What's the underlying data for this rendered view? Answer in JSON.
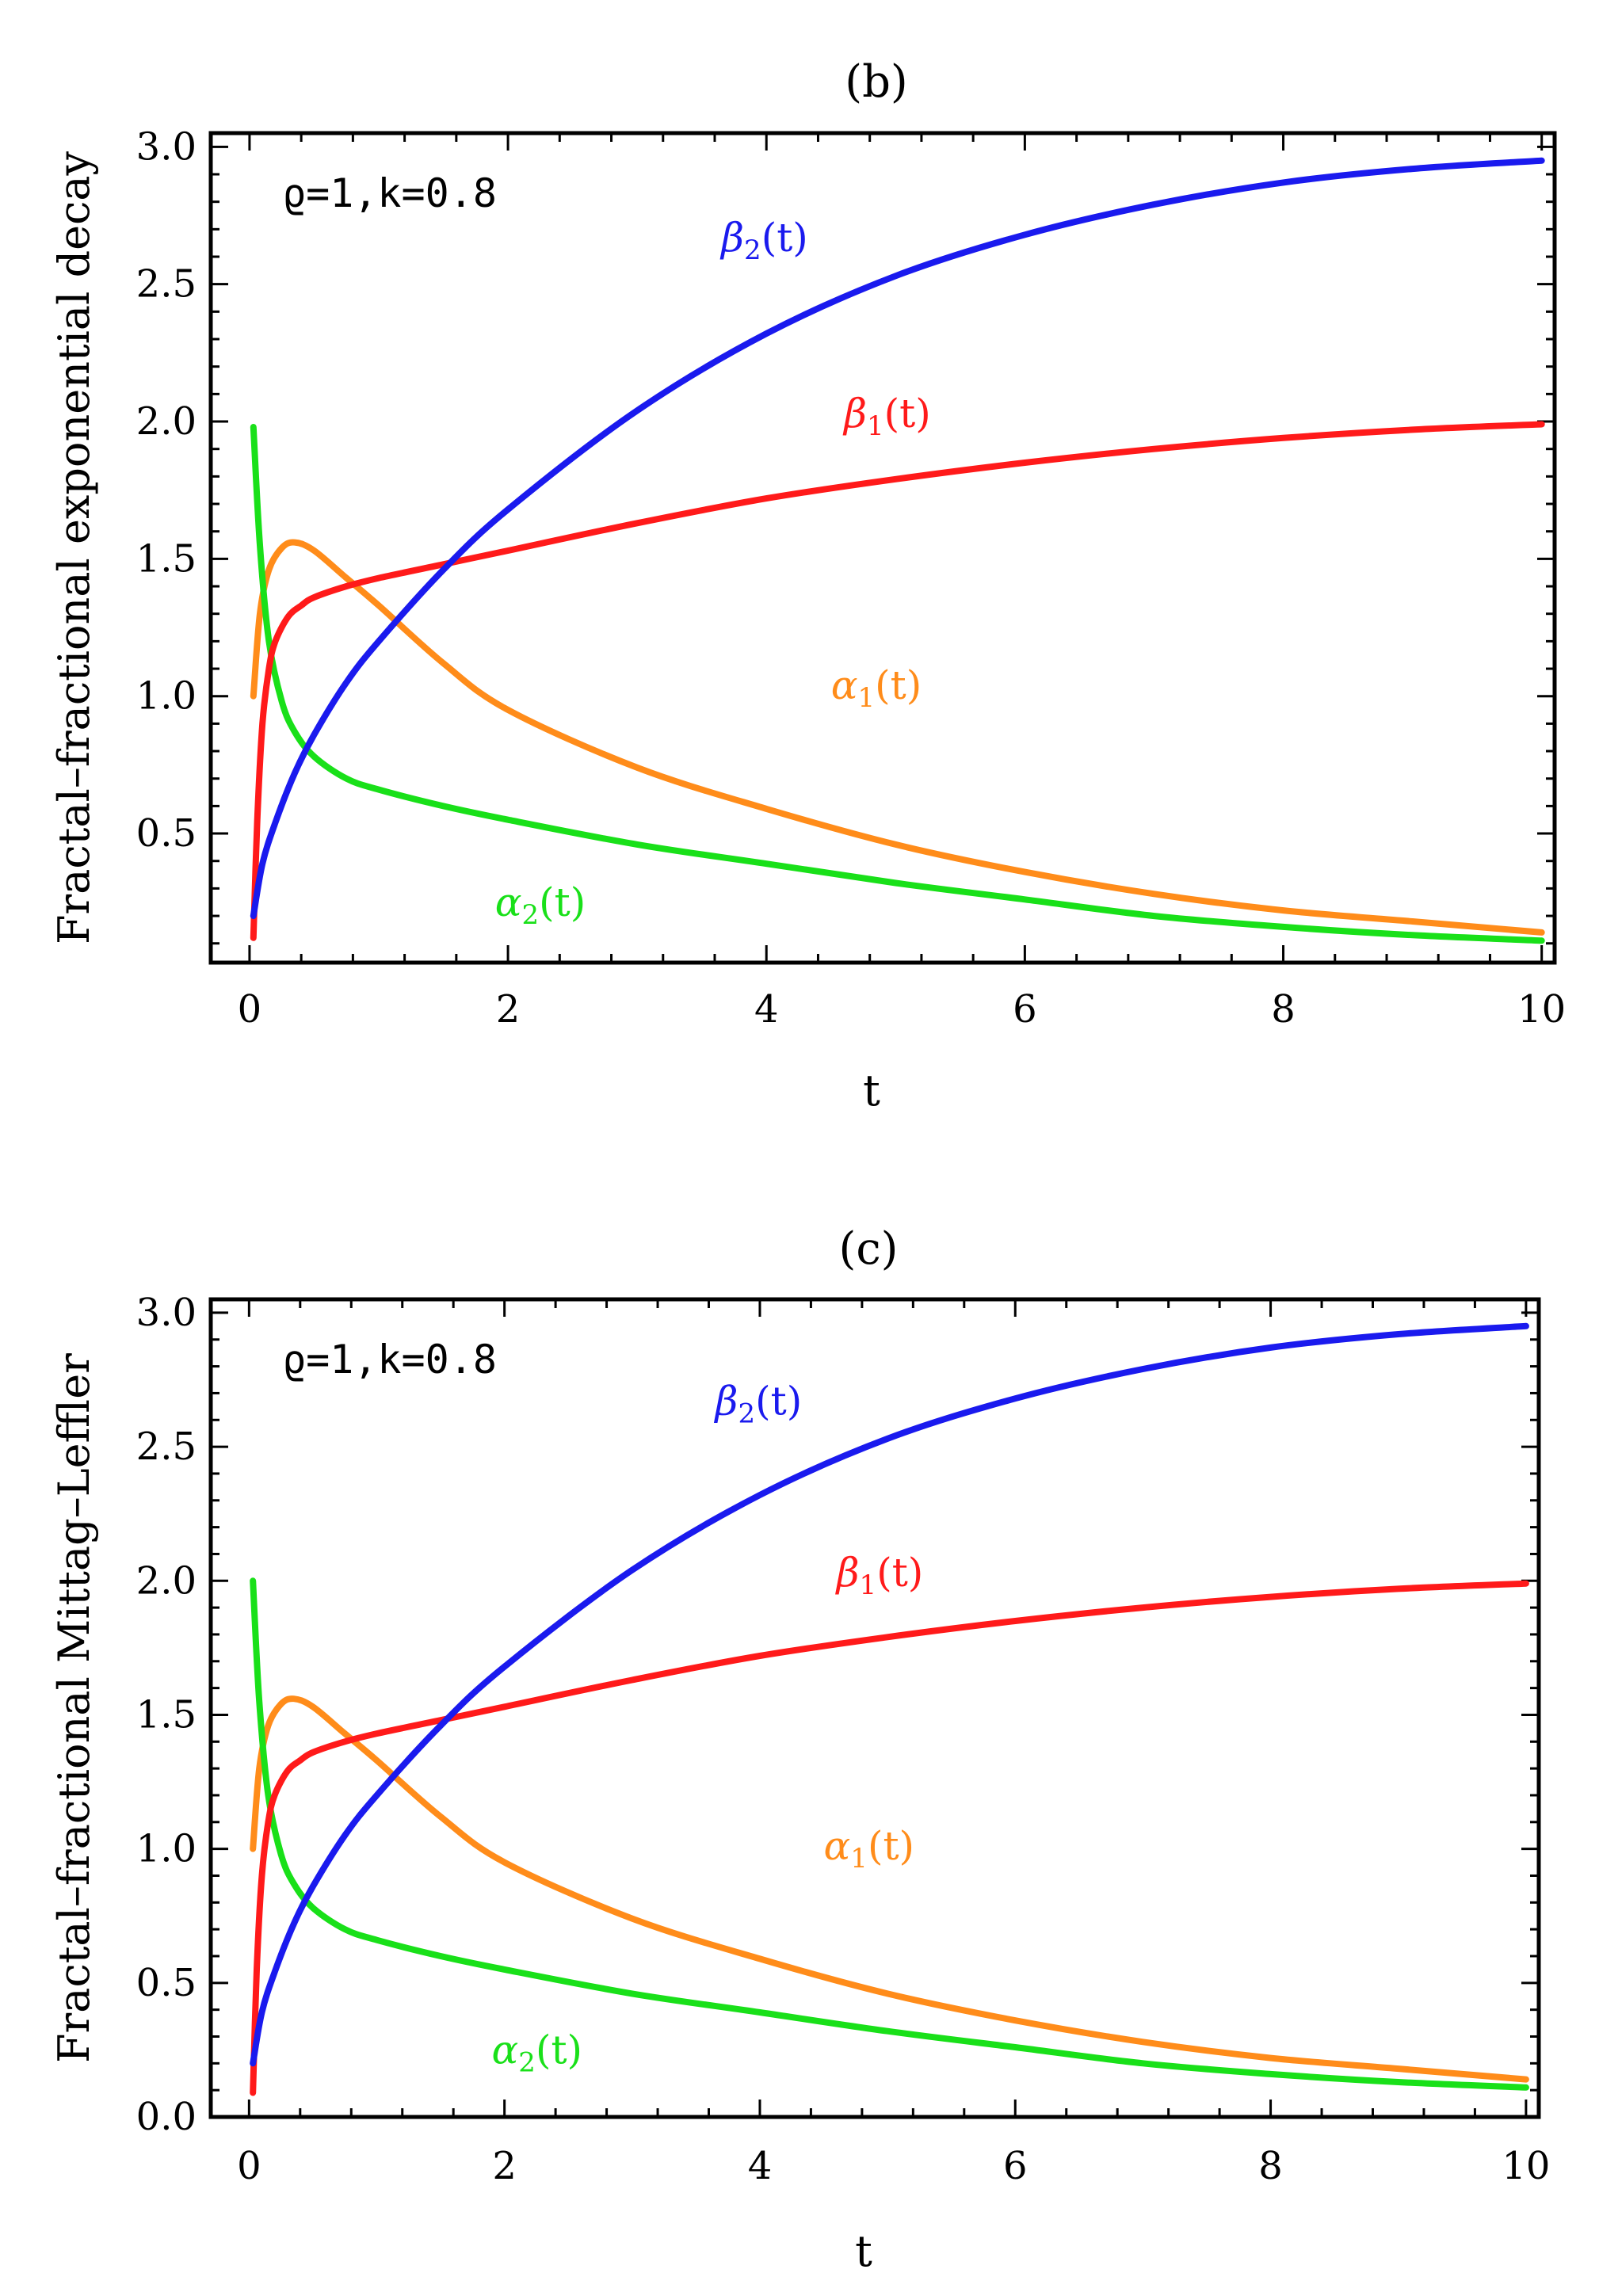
{
  "chart_data": [
    {
      "id": "b",
      "type": "line",
      "title": "(b)",
      "xlabel": "t",
      "ylabel": "Fractal–fractional exponential decay",
      "xlim": [
        -0.3,
        10.1
      ],
      "ylim": [
        0.03,
        3.05
      ],
      "xticks": [
        0,
        2,
        4,
        6,
        8,
        10
      ],
      "yticks": [
        0.5,
        1.0,
        1.5,
        2.0,
        2.5,
        3.0
      ],
      "ytick_labels": [
        "0.5",
        "1.0",
        "1.5",
        "2.0",
        "2.5",
        "3.0"
      ],
      "annotation": "ϱ=1,k=0.8",
      "series": [
        {
          "name": "alpha1",
          "greek": "α",
          "subscript": "1",
          "suffix": "(t)",
          "color": "#ff8c1a",
          "label_at": [
            4.5,
            0.99
          ],
          "x": [
            0.03,
            0.08,
            0.15,
            0.25,
            0.35,
            0.5,
            0.75,
            1,
            1.5,
            2,
            3,
            4,
            5,
            6,
            7,
            8,
            9,
            10
          ],
          "y": [
            1.0,
            1.3,
            1.46,
            1.54,
            1.56,
            1.53,
            1.43,
            1.33,
            1.12,
            0.95,
            0.74,
            0.59,
            0.46,
            0.36,
            0.28,
            0.22,
            0.18,
            0.14
          ]
        },
        {
          "name": "alpha2",
          "greek": "α",
          "subscript": "2",
          "suffix": "(t)",
          "color": "#19e019",
          "label_at": [
            1.9,
            0.2
          ],
          "x": [
            0.03,
            0.08,
            0.15,
            0.25,
            0.35,
            0.5,
            0.75,
            1,
            1.5,
            2,
            3,
            4,
            5,
            6,
            7,
            8,
            9,
            10
          ],
          "y": [
            1.98,
            1.55,
            1.2,
            0.98,
            0.87,
            0.78,
            0.7,
            0.66,
            0.6,
            0.55,
            0.46,
            0.39,
            0.32,
            0.26,
            0.2,
            0.16,
            0.13,
            0.11
          ]
        },
        {
          "name": "beta1",
          "greek": "β",
          "subscript": "1",
          "suffix": "(t)",
          "color": "#ff1a1a",
          "label_at": [
            4.6,
            1.98
          ],
          "x": [
            0.03,
            0.06,
            0.1,
            0.15,
            0.2,
            0.3,
            0.4,
            0.5,
            0.75,
            1,
            1.5,
            2,
            3,
            4,
            5,
            6,
            7,
            8,
            9,
            10
          ],
          "y": [
            0.12,
            0.55,
            0.9,
            1.1,
            1.2,
            1.29,
            1.33,
            1.36,
            1.4,
            1.43,
            1.48,
            1.53,
            1.63,
            1.72,
            1.79,
            1.85,
            1.9,
            1.94,
            1.97,
            1.99
          ]
        },
        {
          "name": "beta2",
          "greek": "β",
          "subscript": "2",
          "suffix": "(t)",
          "color": "#1a1aee",
          "label_at": [
            3.65,
            2.62
          ],
          "x": [
            0.03,
            0.1,
            0.2,
            0.35,
            0.5,
            0.75,
            1,
            1.5,
            2,
            3,
            4,
            5,
            6,
            7,
            8,
            9,
            10
          ],
          "y": [
            0.2,
            0.39,
            0.54,
            0.72,
            0.86,
            1.05,
            1.2,
            1.46,
            1.68,
            2.04,
            2.32,
            2.53,
            2.68,
            2.79,
            2.87,
            2.92,
            2.95
          ]
        }
      ]
    },
    {
      "id": "c",
      "type": "line",
      "title": "(c)",
      "xlabel": "t",
      "ylabel": "Fractal–fractional Mittag–Leffler",
      "xlim": [
        -0.3,
        10.1
      ],
      "ylim": [
        0.0,
        3.05
      ],
      "xticks": [
        0,
        2,
        4,
        6,
        8,
        10
      ],
      "yticks": [
        0.0,
        0.5,
        1.0,
        1.5,
        2.0,
        2.5,
        3.0
      ],
      "ytick_labels": [
        "0.0",
        "0.5",
        "1.0",
        "1.5",
        "2.0",
        "2.5",
        "3.0"
      ],
      "annotation": "ϱ=1,k=0.8",
      "series": [
        {
          "name": "alpha1",
          "greek": "α",
          "subscript": "1",
          "suffix": "(t)",
          "color": "#ff8c1a",
          "label_at": [
            4.5,
            0.96
          ],
          "x": [
            0.03,
            0.08,
            0.15,
            0.25,
            0.35,
            0.5,
            0.75,
            1,
            1.5,
            2,
            3,
            4,
            5,
            6,
            7,
            8,
            9,
            10
          ],
          "y": [
            1.0,
            1.3,
            1.46,
            1.54,
            1.56,
            1.53,
            1.43,
            1.33,
            1.12,
            0.95,
            0.74,
            0.59,
            0.46,
            0.36,
            0.28,
            0.22,
            0.18,
            0.14
          ]
        },
        {
          "name": "alpha2",
          "greek": "α",
          "subscript": "2",
          "suffix": "(t)",
          "color": "#19e019",
          "label_at": [
            1.9,
            0.2
          ],
          "x": [
            0.03,
            0.08,
            0.15,
            0.25,
            0.35,
            0.5,
            0.75,
            1,
            1.5,
            2,
            3,
            4,
            5,
            6,
            7,
            8,
            9,
            10
          ],
          "y": [
            2.0,
            1.55,
            1.2,
            0.98,
            0.87,
            0.78,
            0.7,
            0.66,
            0.6,
            0.55,
            0.46,
            0.39,
            0.32,
            0.26,
            0.2,
            0.16,
            0.13,
            0.11
          ]
        },
        {
          "name": "beta1",
          "greek": "β",
          "subscript": "1",
          "suffix": "(t)",
          "color": "#ff1a1a",
          "label_at": [
            4.6,
            1.98
          ],
          "x": [
            0.03,
            0.06,
            0.1,
            0.15,
            0.2,
            0.3,
            0.4,
            0.5,
            0.75,
            1,
            1.5,
            2,
            3,
            4,
            5,
            6,
            7,
            8,
            9,
            10
          ],
          "y": [
            0.09,
            0.55,
            0.9,
            1.1,
            1.2,
            1.29,
            1.33,
            1.36,
            1.4,
            1.43,
            1.48,
            1.53,
            1.63,
            1.72,
            1.79,
            1.85,
            1.9,
            1.94,
            1.97,
            1.99
          ]
        },
        {
          "name": "beta2",
          "greek": "β",
          "subscript": "2",
          "suffix": "(t)",
          "color": "#1a1aee",
          "label_at": [
            3.65,
            2.62
          ],
          "x": [
            0.03,
            0.1,
            0.2,
            0.35,
            0.5,
            0.75,
            1,
            1.5,
            2,
            3,
            4,
            5,
            6,
            7,
            8,
            9,
            10
          ],
          "y": [
            0.2,
            0.39,
            0.54,
            0.72,
            0.86,
            1.05,
            1.2,
            1.46,
            1.68,
            2.04,
            2.32,
            2.53,
            2.68,
            2.79,
            2.87,
            2.92,
            2.95
          ]
        }
      ]
    }
  ]
}
